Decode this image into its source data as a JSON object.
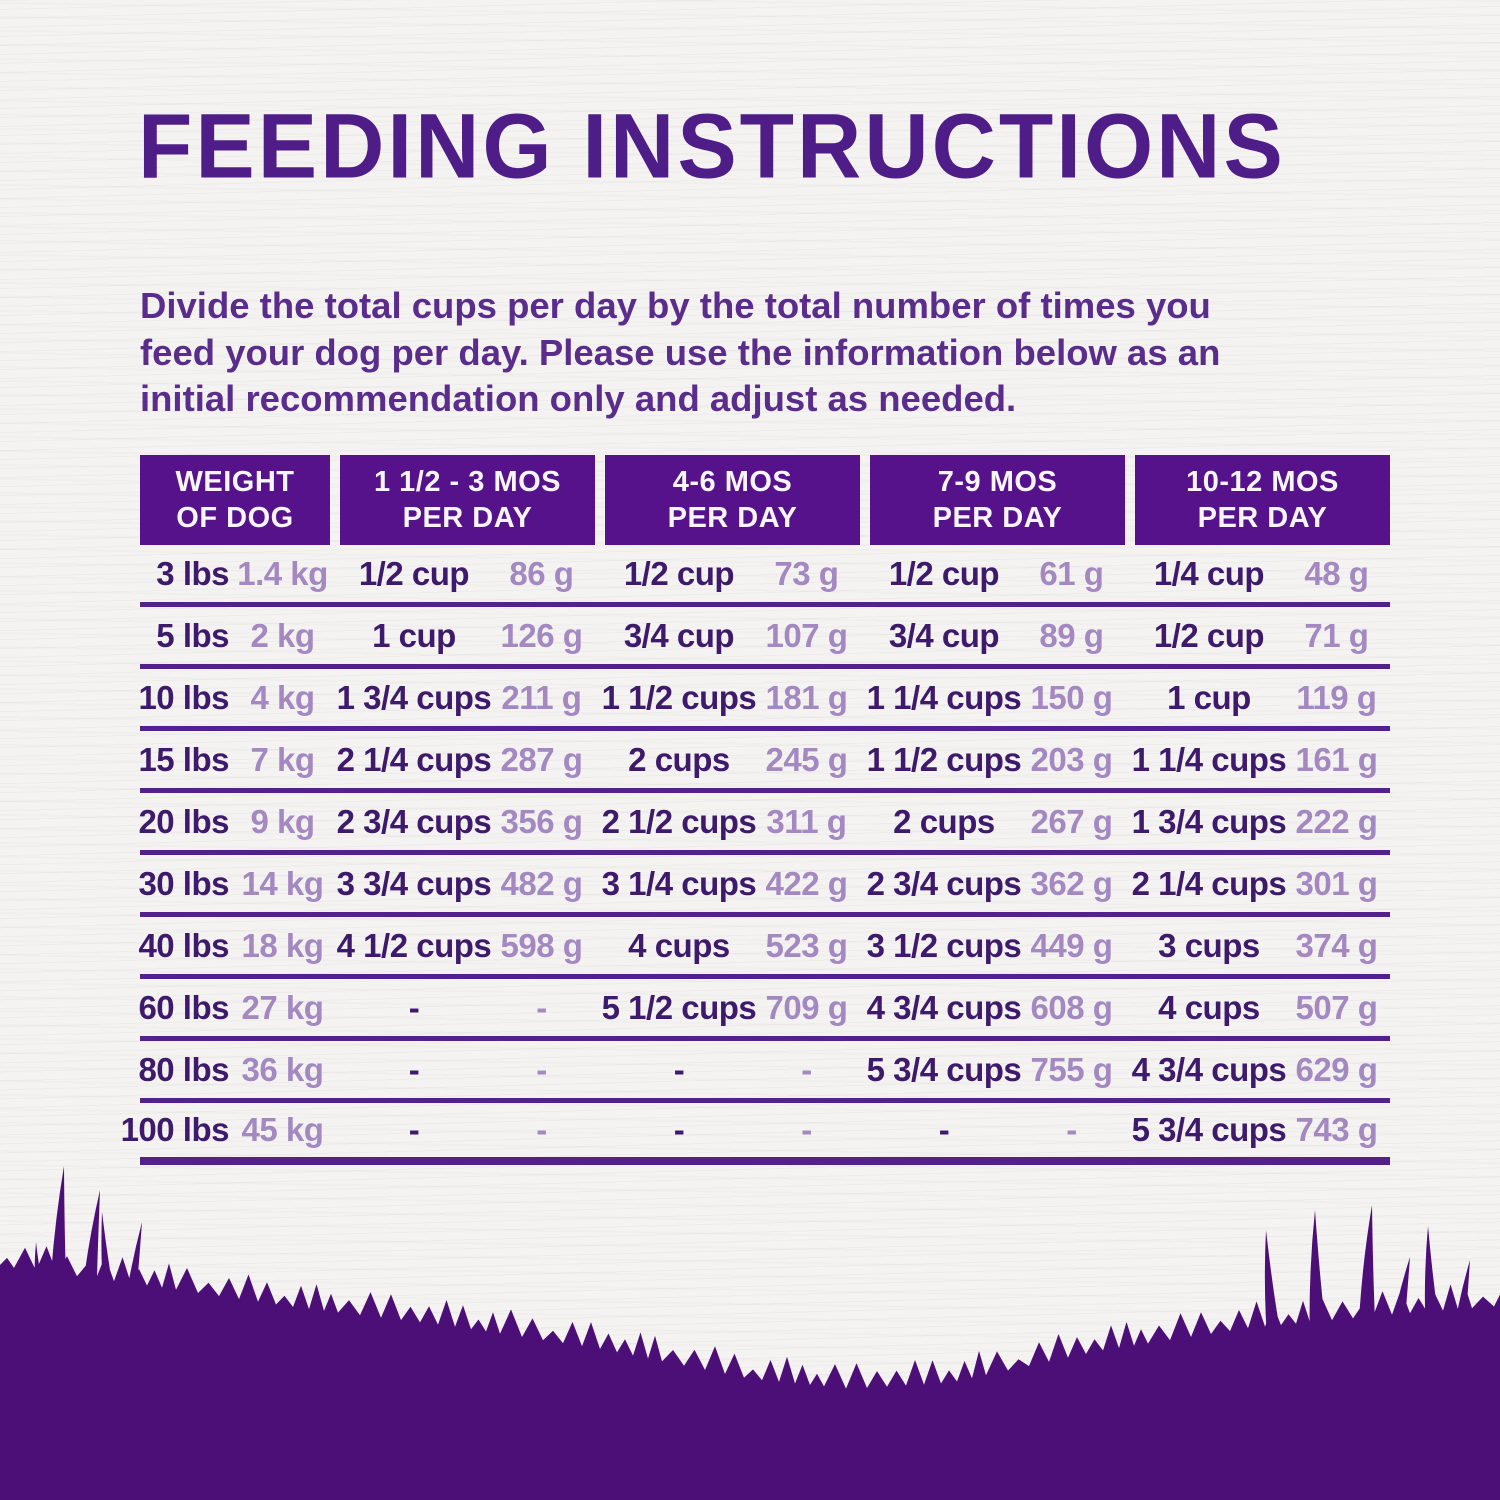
{
  "page": {
    "title": "FEEDING INSTRUCTIONS",
    "intro_lines": [
      "Divide the total cups per day by the total number of times you",
      "feed your dog per day. Please use the information below as an",
      "initial recommendation only and adjust as needed."
    ]
  },
  "table": {
    "headers": [
      {
        "line1": "WEIGHT",
        "line2": "OF DOG"
      },
      {
        "line1": "1 1/2 - 3 MOS",
        "line2": "PER DAY"
      },
      {
        "line1": "4-6 MOS",
        "line2": "PER DAY"
      },
      {
        "line1": "7-9 MOS",
        "line2": "PER DAY"
      },
      {
        "line1": "10-12 MOS",
        "line2": "PER DAY"
      }
    ],
    "rows": [
      {
        "w_lbs": "3 lbs",
        "w_kg": "1.4 kg",
        "c1": "1/2 cup",
        "g1": "86 g",
        "c2": "1/2 cup",
        "g2": "73 g",
        "c3": "1/2 cup",
        "g3": "61 g",
        "c4": "1/4 cup",
        "g4": "48 g"
      },
      {
        "w_lbs": "5 lbs",
        "w_kg": "2 kg",
        "c1": "1 cup",
        "g1": "126 g",
        "c2": "3/4 cup",
        "g2": "107 g",
        "c3": "3/4 cup",
        "g3": "89 g",
        "c4": "1/2 cup",
        "g4": "71 g"
      },
      {
        "w_lbs": "10 lbs",
        "w_kg": "4 kg",
        "c1": "1 3/4 cups",
        "g1": "211 g",
        "c2": "1 1/2 cups",
        "g2": "181 g",
        "c3": "1 1/4 cups",
        "g3": "150 g",
        "c4": "1 cup",
        "g4": "119 g"
      },
      {
        "w_lbs": "15 lbs",
        "w_kg": "7 kg",
        "c1": "2 1/4 cups",
        "g1": "287 g",
        "c2": "2 cups",
        "g2": "245 g",
        "c3": "1 1/2 cups",
        "g3": "203 g",
        "c4": "1 1/4 cups",
        "g4": "161 g"
      },
      {
        "w_lbs": "20 lbs",
        "w_kg": "9 kg",
        "c1": "2 3/4 cups",
        "g1": "356 g",
        "c2": "2 1/2 cups",
        "g2": "311 g",
        "c3": "2 cups",
        "g3": "267 g",
        "c4": "1 3/4 cups",
        "g4": "222 g"
      },
      {
        "w_lbs": "30 lbs",
        "w_kg": "14 kg",
        "c1": "3 3/4 cups",
        "g1": "482 g",
        "c2": "3 1/4 cups",
        "g2": "422 g",
        "c3": "2 3/4 cups",
        "g3": "362 g",
        "c4": "2 1/4 cups",
        "g4": "301 g"
      },
      {
        "w_lbs": "40 lbs",
        "w_kg": "18 kg",
        "c1": "4 1/2 cups",
        "g1": "598 g",
        "c2": "4 cups",
        "g2": "523 g",
        "c3": "3 1/2 cups",
        "g3": "449 g",
        "c4": "3 cups",
        "g4": "374 g"
      },
      {
        "w_lbs": "60 lbs",
        "w_kg": "27 kg",
        "c1": "-",
        "g1": "-",
        "c2": "5 1/2 cups",
        "g2": "709 g",
        "c3": "4 3/4 cups",
        "g3": "608 g",
        "c4": "4 cups",
        "g4": "507 g"
      },
      {
        "w_lbs": "80 lbs",
        "w_kg": "36 kg",
        "c1": "-",
        "g1": "-",
        "c2": "-",
        "g2": "-",
        "c3": "5 3/4 cups",
        "g3": "755 g",
        "c4": "4 3/4 cups",
        "g4": "629 g"
      },
      {
        "w_lbs": "100 lbs",
        "w_kg": "45 kg",
        "c1": "-",
        "g1": "-",
        "c2": "-",
        "g2": "-",
        "c3": "-",
        "g3": "-",
        "c4": "5 3/4 cups",
        "g4": "743 g"
      }
    ]
  },
  "colors": {
    "background": "#f4f3f1",
    "title": "#4e1d87",
    "paragraph": "#5a2d8c",
    "header_bg": "#55128a",
    "header_text": "#f8f5fb",
    "data_primary": "#3e1a6d",
    "data_secondary": "#a388c2",
    "line": "#54208c",
    "grass": "#4c0e77"
  }
}
